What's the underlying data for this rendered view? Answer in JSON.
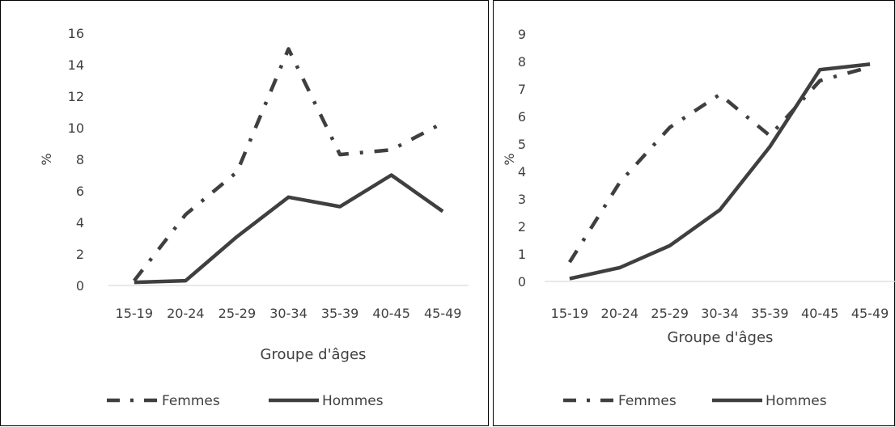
{
  "colors": {
    "line": "#3f3f3f",
    "text": "#404040",
    "axis": "#d9d9d9",
    "border": "#000000"
  },
  "chart_data": [
    {
      "type": "line",
      "title": "",
      "xlabel": "Groupe d'âges",
      "ylabel": "%",
      "categories": [
        "15-19",
        "20-24",
        "25-29",
        "30-34",
        "35-39",
        "40-45",
        "45-49"
      ],
      "ylim": [
        0,
        16
      ],
      "yticks": [
        0,
        2,
        4,
        6,
        8,
        10,
        12,
        14,
        16
      ],
      "grid": false,
      "legend_position": "bottom",
      "series": [
        {
          "name": "Femmes",
          "style": "dash-dot",
          "values": [
            0.3,
            4.5,
            7.2,
            15.0,
            8.3,
            8.6,
            10.3
          ]
        },
        {
          "name": "Hommes",
          "style": "solid",
          "values": [
            0.2,
            0.3,
            3.1,
            5.6,
            5.0,
            7.0,
            4.7
          ]
        }
      ]
    },
    {
      "type": "line",
      "title": "",
      "xlabel": "Groupe d'âges",
      "ylabel": "%",
      "categories": [
        "15-19",
        "20-24",
        "25-29",
        "30-34",
        "35-39",
        "40-45",
        "45-49"
      ],
      "ylim": [
        0,
        9
      ],
      "yticks": [
        0,
        1,
        2,
        3,
        4,
        5,
        6,
        7,
        8,
        9
      ],
      "grid": false,
      "legend_position": "bottom",
      "series": [
        {
          "name": "Femmes",
          "style": "dash-dot",
          "values": [
            0.7,
            3.6,
            5.6,
            6.8,
            5.3,
            7.3,
            7.8
          ]
        },
        {
          "name": "Hommes",
          "style": "solid",
          "values": [
            0.1,
            0.5,
            1.3,
            2.6,
            4.9,
            7.7,
            7.9
          ]
        }
      ]
    }
  ]
}
